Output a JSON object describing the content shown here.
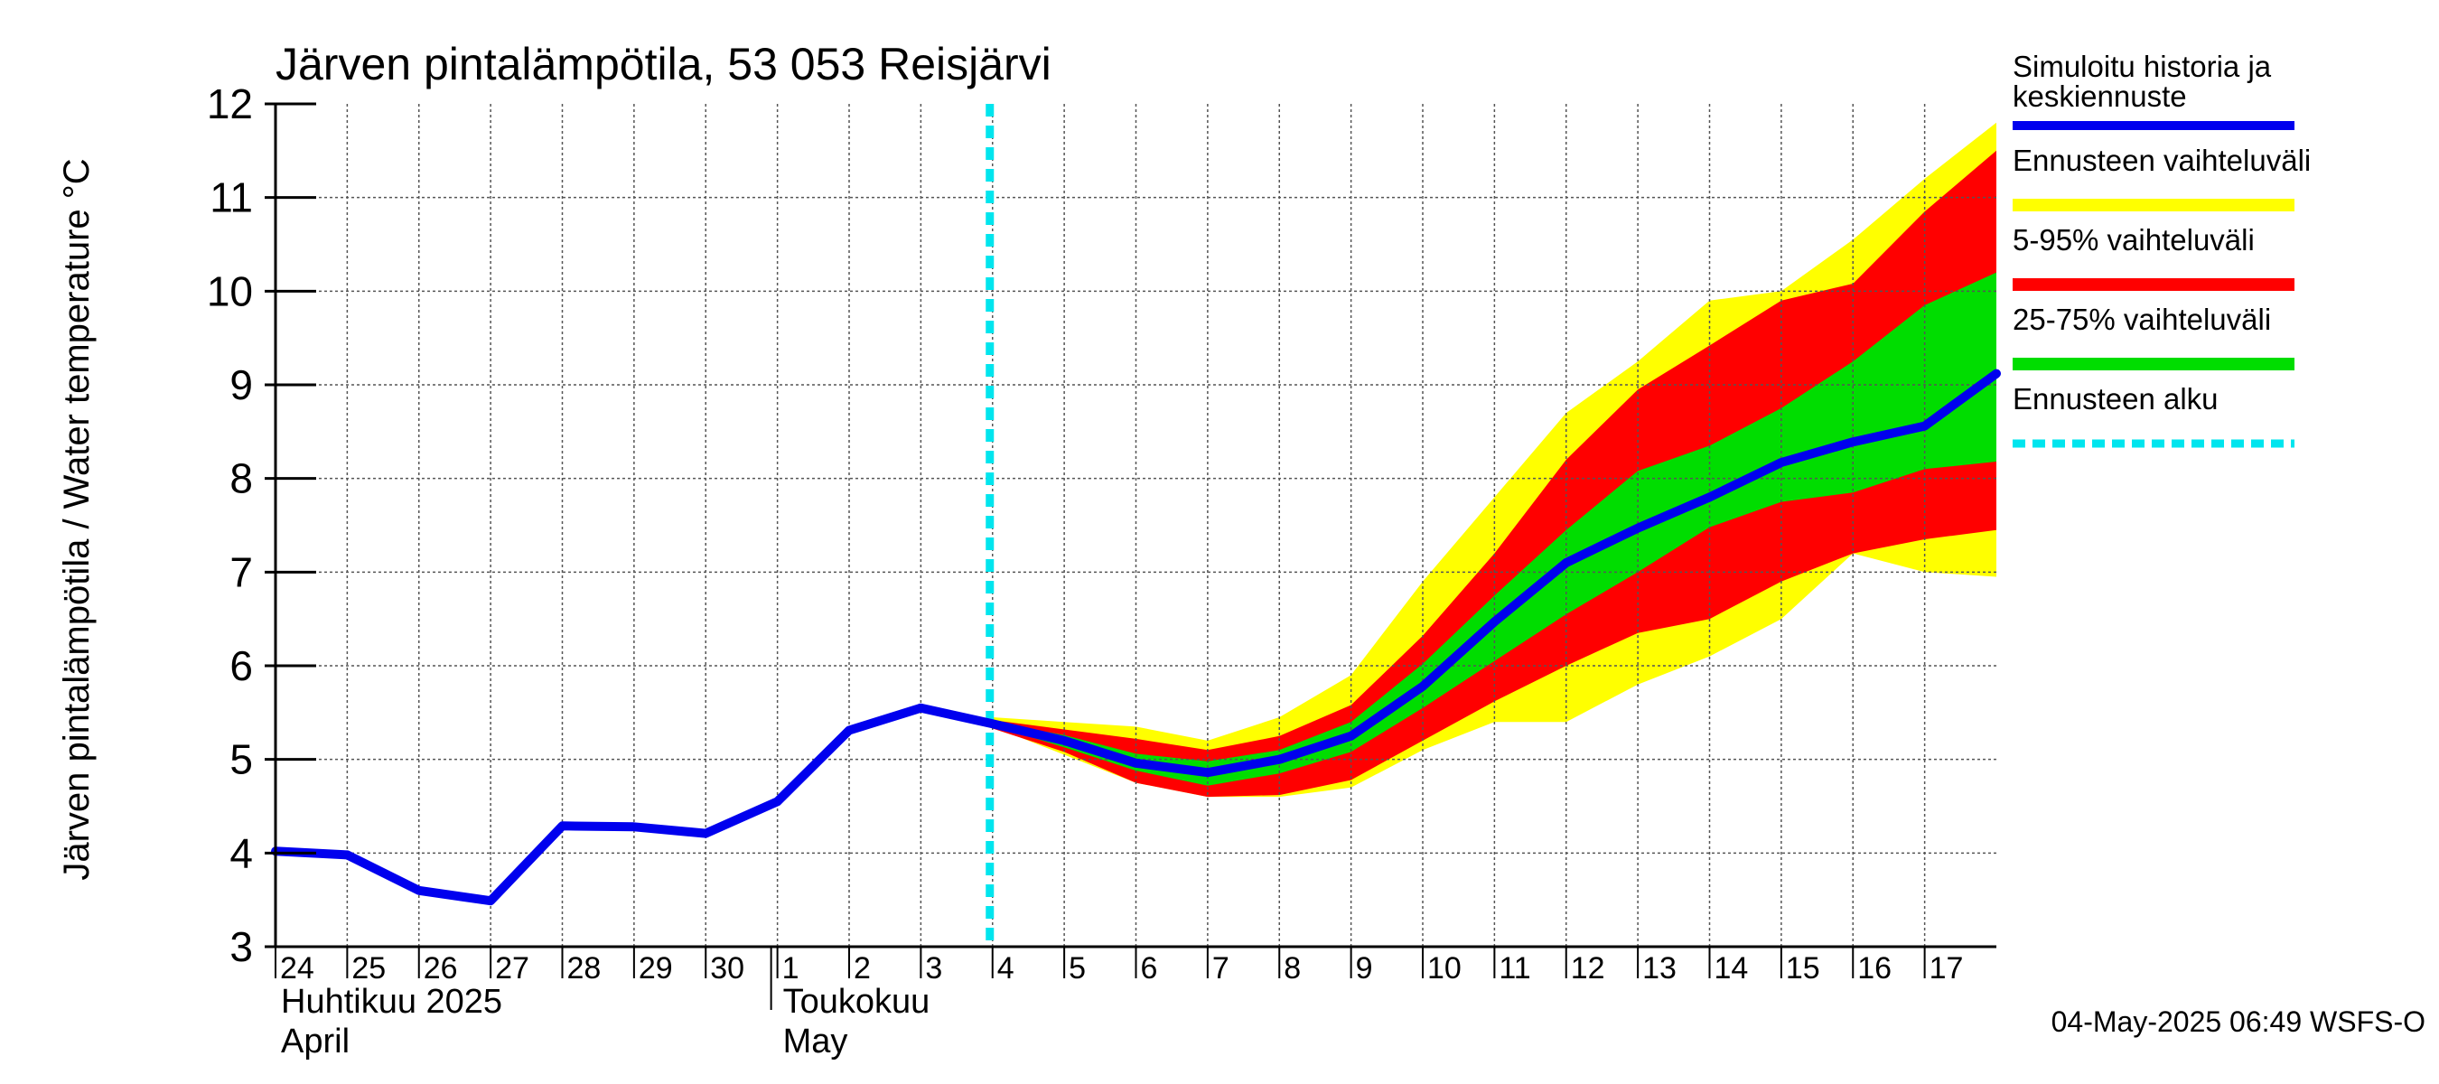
{
  "chart_data": {
    "type": "line",
    "title": "Järven pintalämpötila, 53 053 Reisjärvi",
    "ylabel": "Järven pintalämpötila / Water temperature °C",
    "xlabel": "",
    "ylim": [
      3,
      12
    ],
    "yticks": [
      "3",
      "4",
      "5",
      "6",
      "7",
      "8",
      "9",
      "10",
      "11",
      "12"
    ],
    "grid": true,
    "legend_position": "right",
    "x_start": "2025-04-24",
    "x_end": "2025-05-18",
    "day_ticks": [
      {
        "date": "2025-04-24",
        "label": "24"
      },
      {
        "date": "2025-04-25",
        "label": "25"
      },
      {
        "date": "2025-04-26",
        "label": "26"
      },
      {
        "date": "2025-04-27",
        "label": "27"
      },
      {
        "date": "2025-04-28",
        "label": "28"
      },
      {
        "date": "2025-04-29",
        "label": "29"
      },
      {
        "date": "2025-04-30",
        "label": "30"
      },
      {
        "date": "2025-05-01",
        "label": "1"
      },
      {
        "date": "2025-05-02",
        "label": "2"
      },
      {
        "date": "2025-05-03",
        "label": "3"
      },
      {
        "date": "2025-05-04",
        "label": "4"
      },
      {
        "date": "2025-05-05",
        "label": "5"
      },
      {
        "date": "2025-05-06",
        "label": "6"
      },
      {
        "date": "2025-05-07",
        "label": "7"
      },
      {
        "date": "2025-05-08",
        "label": "8"
      },
      {
        "date": "2025-05-09",
        "label": "9"
      },
      {
        "date": "2025-05-10",
        "label": "10"
      },
      {
        "date": "2025-05-11",
        "label": "11"
      },
      {
        "date": "2025-05-12",
        "label": "12"
      },
      {
        "date": "2025-05-13",
        "label": "13"
      },
      {
        "date": "2025-05-14",
        "label": "14"
      },
      {
        "date": "2025-05-15",
        "label": "15"
      },
      {
        "date": "2025-05-16",
        "label": "16"
      },
      {
        "date": "2025-05-17",
        "label": "17"
      }
    ],
    "month_labels": [
      {
        "date": "2025-04-24",
        "fi": "Huhtikuu  2025",
        "en": "April"
      },
      {
        "date": "2025-05-01",
        "fi": "Toukokuu",
        "en": "May"
      }
    ],
    "month_boundary": "2025-05-01",
    "forecast_start": "2025-05-04",
    "series": [
      {
        "name": "Simuloitu historia ja keskiennuste",
        "color": "#0000ee",
        "x": [
          "2025-04-24",
          "2025-04-25",
          "2025-04-26",
          "2025-04-27",
          "2025-04-28",
          "2025-04-29",
          "2025-04-30",
          "2025-05-01",
          "2025-05-02",
          "2025-05-03",
          "2025-05-04",
          "2025-05-05",
          "2025-05-06",
          "2025-05-07",
          "2025-05-08",
          "2025-05-09",
          "2025-05-10",
          "2025-05-11",
          "2025-05-12",
          "2025-05-13",
          "2025-05-14",
          "2025-05-15",
          "2025-05-16",
          "2025-05-17",
          "2025-05-18"
        ],
        "y": [
          4.02,
          3.98,
          3.6,
          3.49,
          4.29,
          4.28,
          4.21,
          4.55,
          5.31,
          5.55,
          5.38,
          5.2,
          4.96,
          4.86,
          5.0,
          5.25,
          5.78,
          6.47,
          7.1,
          7.47,
          7.8,
          8.17,
          8.39,
          8.56,
          9.12
        ]
      }
    ],
    "bands": [
      {
        "name": "Ennusteen vaihteluväli",
        "color": "#ffff00",
        "x": [
          "2025-05-04",
          "2025-05-05",
          "2025-05-06",
          "2025-05-07",
          "2025-05-08",
          "2025-05-09",
          "2025-05-10",
          "2025-05-11",
          "2025-05-12",
          "2025-05-13",
          "2025-05-14",
          "2025-05-15",
          "2025-05-16",
          "2025-05-17",
          "2025-05-18"
        ],
        "lower": [
          5.35,
          5.05,
          4.75,
          4.6,
          4.6,
          4.7,
          5.1,
          5.4,
          5.4,
          5.8,
          6.1,
          6.5,
          7.2,
          7.0,
          6.95
        ],
        "upper": [
          5.45,
          5.4,
          5.35,
          5.2,
          5.45,
          5.9,
          6.9,
          7.8,
          8.7,
          9.25,
          9.9,
          10.0,
          10.55,
          11.2,
          11.8
        ]
      },
      {
        "name": "5-95% vaihteluväli",
        "color": "#ff0000",
        "x": [
          "2025-05-04",
          "2025-05-05",
          "2025-05-06",
          "2025-05-07",
          "2025-05-08",
          "2025-05-09",
          "2025-05-10",
          "2025-05-11",
          "2025-05-12",
          "2025-05-13",
          "2025-05-14",
          "2025-05-15",
          "2025-05-16",
          "2025-05-17",
          "2025-05-18"
        ],
        "lower": [
          5.33,
          5.08,
          4.75,
          4.6,
          4.62,
          4.78,
          5.2,
          5.62,
          6.0,
          6.35,
          6.5,
          6.9,
          7.2,
          7.35,
          7.45
        ],
        "upper": [
          5.42,
          5.32,
          5.22,
          5.1,
          5.25,
          5.58,
          6.32,
          7.2,
          8.2,
          8.95,
          9.42,
          9.9,
          10.08,
          10.85,
          11.5
        ]
      },
      {
        "name": "25-75% vaihteluväli",
        "color": "#00dd00",
        "x": [
          "2025-05-04",
          "2025-05-05",
          "2025-05-06",
          "2025-05-07",
          "2025-05-08",
          "2025-05-09",
          "2025-05-10",
          "2025-05-11",
          "2025-05-12",
          "2025-05-13",
          "2025-05-14",
          "2025-05-15",
          "2025-05-16",
          "2025-05-17",
          "2025-05-18"
        ],
        "lower": [
          5.36,
          5.13,
          4.88,
          4.72,
          4.85,
          5.08,
          5.55,
          6.05,
          6.55,
          7.0,
          7.48,
          7.75,
          7.85,
          8.1,
          8.18
        ],
        "upper": [
          5.4,
          5.26,
          5.06,
          4.98,
          5.1,
          5.4,
          6.02,
          6.75,
          7.45,
          8.08,
          8.35,
          8.75,
          9.25,
          9.85,
          10.2
        ]
      }
    ],
    "legend": [
      {
        "label": "Simuloitu historia ja",
        "label2": "keskiennuste",
        "color": "#0000ee",
        "style": "line"
      },
      {
        "label": "Ennusteen vaihteluväli",
        "label2": "",
        "color": "#ffff00",
        "style": "band"
      },
      {
        "label": "5-95% vaihteluväli",
        "label2": "",
        "color": "#ff0000",
        "style": "band"
      },
      {
        "label": "25-75% vaihteluväli",
        "label2": "",
        "color": "#00dd00",
        "style": "band"
      },
      {
        "label": "Ennusteen alku",
        "label2": "",
        "color": "#00e5ee",
        "style": "dashed"
      }
    ]
  },
  "footer": {
    "timestamp": "04-May-2025 06:49 WSFS-O"
  }
}
